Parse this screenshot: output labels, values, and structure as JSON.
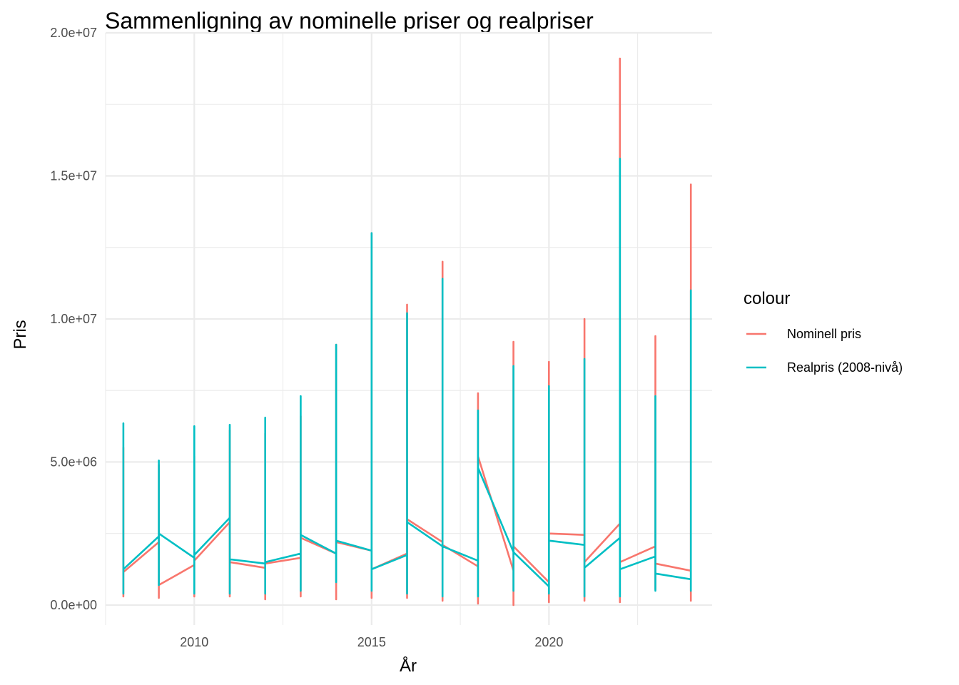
{
  "chart_data": {
    "type": "line",
    "title": "Sammenligning av nominelle priser og realpriser",
    "xlabel": "År",
    "ylabel": "Pris",
    "xlim": [
      2007.5,
      2024.6
    ],
    "ylim": [
      -700000,
      20000000
    ],
    "x_ticks": [
      {
        "value": 2010,
        "label": "2010"
      },
      {
        "value": 2015,
        "label": "2015"
      },
      {
        "value": 2020,
        "label": "2020"
      }
    ],
    "y_ticks": [
      {
        "value": 0,
        "label": "0.0e+00"
      },
      {
        "value": 5000000,
        "label": "5.0e+06"
      },
      {
        "value": 10000000,
        "label": "1.0e+07"
      },
      {
        "value": 15000000,
        "label": "1.5e+07"
      },
      {
        "value": 20000000,
        "label": "2.0e+07"
      }
    ],
    "grid": true,
    "legend": {
      "title": "colour",
      "position": "right"
    },
    "series": [
      {
        "name": "Nominell pris",
        "color": "#f8766d",
        "x": [
          2008,
          2008,
          2008,
          2008,
          2009,
          2009,
          2009,
          2009,
          2010,
          2010,
          2010,
          2010,
          2011,
          2011,
          2011,
          2011,
          2012,
          2012,
          2012,
          2012,
          2013,
          2013,
          2013,
          2013,
          2014,
          2014,
          2014,
          2014,
          2015,
          2015,
          2015,
          2015,
          2016,
          2016,
          2016,
          2016,
          2017,
          2017,
          2017,
          2017,
          2018,
          2018,
          2018,
          2018,
          2019,
          2019,
          2019,
          2019,
          2020,
          2020,
          2020,
          2020,
          2021,
          2021,
          2021,
          2021,
          2022,
          2022,
          2022,
          2022,
          2023,
          2023,
          2023,
          2023,
          2024,
          2024,
          2024,
          2024
        ],
        "y": [
          1100000,
          300000,
          5500000,
          1150000,
          2200000,
          250000,
          4900000,
          700000,
          1400000,
          300000,
          5200000,
          1550000,
          2900000,
          300000,
          6100000,
          1500000,
          1300000,
          200000,
          6000000,
          1450000,
          1650000,
          300000,
          6600000,
          2350000,
          1800000,
          200000,
          9100000,
          2200000,
          1900000,
          250000,
          13000000,
          1250000,
          1800000,
          250000,
          10500000,
          3000000,
          2200000,
          150000,
          12000000,
          2100000,
          1350000,
          50000,
          7400000,
          5200000,
          1200000,
          0,
          9200000,
          2050000,
          800000,
          100000,
          8500000,
          2500000,
          2450000,
          150000,
          10000000,
          1500000,
          2850000,
          100000,
          19100000,
          1500000,
          2050000,
          550000,
          9400000,
          1450000,
          1200000,
          150000,
          14700000,
          1200000
        ]
      },
      {
        "name": "Realpris (2008-nivå)",
        "color": "#00bfc4",
        "x": [
          2008,
          2008,
          2008,
          2008,
          2009,
          2009,
          2009,
          2009,
          2010,
          2010,
          2010,
          2010,
          2011,
          2011,
          2011,
          2011,
          2012,
          2012,
          2012,
          2012,
          2013,
          2013,
          2013,
          2013,
          2014,
          2014,
          2014,
          2014,
          2015,
          2015,
          2015,
          2015,
          2016,
          2016,
          2016,
          2016,
          2017,
          2017,
          2017,
          2017,
          2018,
          2018,
          2018,
          2018,
          2019,
          2019,
          2019,
          2019,
          2020,
          2020,
          2020,
          2020,
          2021,
          2021,
          2021,
          2021,
          2022,
          2022,
          2022,
          2022,
          2023,
          2023,
          2023,
          2023,
          2024,
          2024,
          2024,
          2024
        ],
        "y": [
          1250000,
          400000,
          6350000,
          1250000,
          2400000,
          700000,
          5050000,
          2500000,
          1650000,
          400000,
          6250000,
          1750000,
          3050000,
          400000,
          6300000,
          1600000,
          1450000,
          400000,
          6550000,
          1500000,
          1800000,
          500000,
          7300000,
          2450000,
          1800000,
          800000,
          9100000,
          2250000,
          1900000,
          500000,
          13000000,
          1250000,
          1750000,
          400000,
          10200000,
          2900000,
          2050000,
          300000,
          11400000,
          2050000,
          1550000,
          300000,
          6800000,
          4800000,
          1850000,
          500000,
          8350000,
          1850000,
          650000,
          400000,
          7650000,
          2250000,
          2100000,
          300000,
          8600000,
          1300000,
          2350000,
          300000,
          15600000,
          1250000,
          1700000,
          500000,
          7300000,
          1100000,
          900000,
          500000,
          11000000,
          900000
        ]
      }
    ]
  }
}
